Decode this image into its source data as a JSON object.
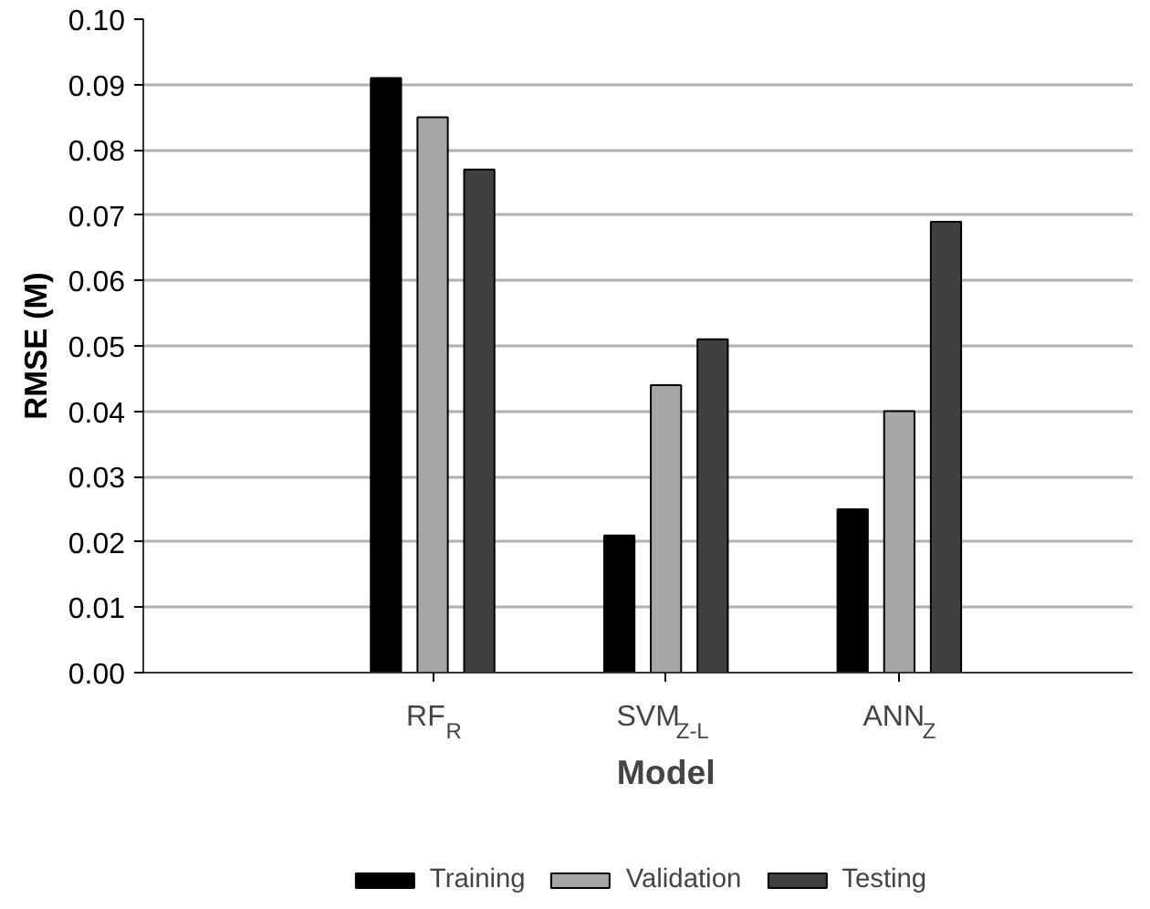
{
  "chart_data": {
    "type": "bar",
    "xlabel": "Model",
    "ylabel": "RMSE (M)",
    "categories": [
      "RF$_{R}$",
      "SVM$_{Z-L}$",
      "ANN$_{Z}$"
    ],
    "series": [
      {
        "name": "Training",
        "color": "#000000",
        "values": [
          0.091,
          0.021,
          0.025
        ]
      },
      {
        "name": "Validation",
        "color": "#a6a6a6",
        "values": [
          0.085,
          0.044,
          0.04
        ]
      },
      {
        "name": "Testing",
        "color": "#404040",
        "values": [
          0.077,
          0.051,
          0.069
        ]
      }
    ],
    "ylim": [
      0,
      0.1
    ],
    "yticks": [
      {
        "value": 0,
        "label": "0.00"
      },
      {
        "value": 0.01,
        "label": "0.01"
      },
      {
        "value": 0.02,
        "label": "0.02"
      },
      {
        "value": 0.03,
        "label": "0.03"
      },
      {
        "value": 0.04,
        "label": "0.04"
      },
      {
        "value": 0.05,
        "label": "0.05"
      },
      {
        "value": 0.06,
        "label": "0.06"
      },
      {
        "value": 0.07,
        "label": "0.07"
      },
      {
        "value": 0.08,
        "label": "0.08"
      },
      {
        "value": 0.09,
        "label": "0.09"
      },
      {
        "value": 0.1,
        "label": "0.10"
      }
    ],
    "grid": "y",
    "legend": "bottom"
  }
}
